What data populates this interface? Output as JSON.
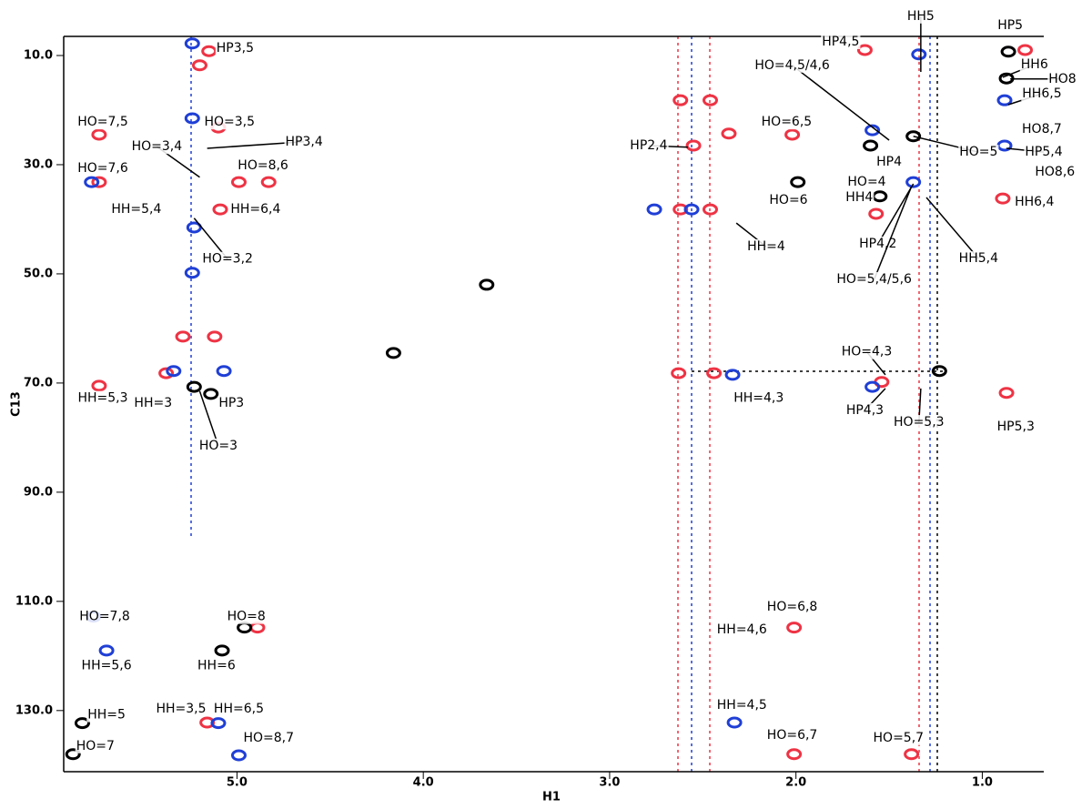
{
  "chart_data": {
    "type": "scatter",
    "xlabel": "H1",
    "ylabel": "C13",
    "xlim": [
      5.93,
      0.67
    ],
    "ylim": [
      6.5,
      141.2
    ],
    "xticks": [
      {
        "value": 5,
        "label": "5.0"
      },
      {
        "value": 4,
        "label": "4.0"
      },
      {
        "value": 3,
        "label": "3.0"
      },
      {
        "value": 2,
        "label": "2.0"
      },
      {
        "value": 1,
        "label": "1.0"
      }
    ],
    "yticks": [
      {
        "value": 10,
        "label": "10.0"
      },
      {
        "value": 30,
        "label": "30.0"
      },
      {
        "value": 50,
        "label": "50.0"
      },
      {
        "value": 70,
        "label": "70.0"
      },
      {
        "value": 90,
        "label": "90.0"
      },
      {
        "value": 110,
        "label": "110.0"
      },
      {
        "value": 130,
        "label": "130.0"
      }
    ],
    "series": [
      {
        "color": "#ee3344",
        "x": [
          5.15,
          5.2,
          5.1,
          4.99,
          4.83,
          5.09,
          5.74,
          5.74,
          5.29,
          5.12,
          5.38,
          5.74,
          4.89,
          5.16,
          2.01,
          2.01,
          1.38,
          2.62,
          2.46,
          2.55,
          2.62,
          2.46,
          2.63,
          2.44,
          2.36,
          0.87,
          1.63,
          0.89,
          1.57,
          1.54,
          0.77,
          2.02
        ],
        "values": [
          9.2,
          11.8,
          23.2,
          33.2,
          33.2,
          38.2,
          24.5,
          33.2,
          61.5,
          61.5,
          68.2,
          70.5,
          114.8,
          132.2,
          114.8,
          138,
          138,
          18.2,
          18.2,
          26.5,
          38.2,
          38.2,
          68.2,
          68.2,
          24.3,
          71.8,
          9,
          36.2,
          39,
          69.8,
          9,
          24.5
        ]
      },
      {
        "color": "#1f3fd6",
        "x": [
          5.24,
          5.24,
          5.24,
          5.23,
          5.34,
          5.07,
          5.78,
          5.77,
          5.7,
          4.99,
          5.1,
          2.34,
          2.56,
          2.76,
          1.37,
          0.88,
          0.88,
          1.59,
          2.33,
          1.59,
          1.34
        ],
        "values": [
          7.8,
          21.5,
          49.8,
          41.5,
          67.8,
          67.8,
          33.2,
          112.8,
          119,
          138.2,
          132.3,
          68.5,
          38.2,
          38.2,
          33.2,
          18.2,
          26.5,
          23.7,
          132.2,
          70.7,
          9.8
        ]
      },
      {
        "color": "#000000",
        "x": [
          3.66,
          4.16,
          5.23,
          5.14,
          4.96,
          5.08,
          5.83,
          5.88,
          1.6,
          1.55,
          1.99,
          0.86,
          0.87,
          1.37,
          1.23
        ],
        "values": [
          52,
          64.5,
          70.7,
          72,
          114.8,
          119,
          132.3,
          138,
          26.5,
          35.8,
          33.2,
          9.3,
          14.2,
          24.8,
          67.8
        ]
      }
    ],
    "annotations": [
      {
        "text": "HP3,5",
        "x": 5.01,
        "y": 8.7
      },
      {
        "text": "HO=3,5",
        "x": 5.04,
        "y": 22.2
      },
      {
        "text": "HO=3,4",
        "x": 5.43,
        "y": 26.7,
        "xy": [
          5.2,
          32.3
        ]
      },
      {
        "text": "HP3,4",
        "x": 4.64,
        "y": 25.8,
        "xy": [
          5.16,
          27.0
        ]
      },
      {
        "text": "HO=8,6",
        "x": 4.86,
        "y": 30.2
      },
      {
        "text": "HH=6,4",
        "x": 4.9,
        "y": 38.2
      },
      {
        "text": "HO=3,2",
        "x": 5.05,
        "y": 47.3,
        "xy": [
          5.23,
          39.8
        ]
      },
      {
        "text": "HO=7,5",
        "x": 5.72,
        "y": 22.2
      },
      {
        "text": "HO=7,6",
        "x": 5.72,
        "y": 30.7
      },
      {
        "text": "HH=5,4",
        "x": 5.54,
        "y": 38.2
      },
      {
        "text": "HH=5,3",
        "x": 5.72,
        "y": 72.8
      },
      {
        "text": "HH=3",
        "x": 5.45,
        "y": 73.7
      },
      {
        "text": "HP3",
        "x": 5.03,
        "y": 73.7
      },
      {
        "text": "HO=3",
        "x": 5.1,
        "y": 81.5,
        "xy": [
          5.2,
          71.5
        ]
      },
      {
        "text": "HO=7,8",
        "x": 5.71,
        "y": 112.8
      },
      {
        "text": "HH=5,6",
        "x": 5.7,
        "y": 121.8
      },
      {
        "text": "HO=8",
        "x": 4.95,
        "y": 112.8
      },
      {
        "text": "HH=6",
        "x": 5.11,
        "y": 121.8
      },
      {
        "text": "HH=5",
        "x": 5.7,
        "y": 130.8
      },
      {
        "text": "HH=3,5",
        "x": 5.3,
        "y": 129.7
      },
      {
        "text": "HH=6,5",
        "x": 4.99,
        "y": 129.7
      },
      {
        "text": "HO=7",
        "x": 5.76,
        "y": 136.5
      },
      {
        "text": "HO=8,7",
        "x": 4.83,
        "y": 135
      },
      {
        "text": "HP2,4",
        "x": 2.79,
        "y": 26.5,
        "xy": [
          2.58,
          26.8
        ]
      },
      {
        "text": "HO=6,5",
        "x": 2.05,
        "y": 22.2
      },
      {
        "text": "HO=6",
        "x": 2.04,
        "y": 36.5
      },
      {
        "text": "HH=4",
        "x": 2.16,
        "y": 45,
        "xy": [
          2.32,
          40.7
        ]
      },
      {
        "text": "HH=4,3",
        "x": 2.2,
        "y": 72.8
      },
      {
        "text": "HO=6,8",
        "x": 2.02,
        "y": 111
      },
      {
        "text": "HH=4,6",
        "x": 2.29,
        "y": 115.2
      },
      {
        "text": "HH=4,5",
        "x": 2.29,
        "y": 129
      },
      {
        "text": "HO=6,7",
        "x": 2.02,
        "y": 134.5
      },
      {
        "text": "HO=5,7",
        "x": 1.45,
        "y": 135
      },
      {
        "text": "HP4,5",
        "x": 1.76,
        "y": 7.5
      },
      {
        "text": "HH5",
        "x": 1.33,
        "y": 2.8,
        "xy": [
          1.33,
          13
        ]
      },
      {
        "text": "HP5",
        "x": 0.85,
        "y": 4.5
      },
      {
        "text": "HO=4,5/4,6",
        "x": 2.02,
        "y": 11.8,
        "xy": [
          1.5,
          25.5
        ]
      },
      {
        "text": "HH6",
        "x": 0.72,
        "y": 11.7,
        "xy": [
          0.89,
          14
        ]
      },
      {
        "text": "HO8",
        "x": 0.57,
        "y": 14.3,
        "xy": [
          0.85,
          14.3
        ]
      },
      {
        "text": "HH6,5",
        "x": 0.68,
        "y": 17,
        "xy": [
          0.86,
          19
        ]
      },
      {
        "text": "HO8,7",
        "x": 0.68,
        "y": 23.5
      },
      {
        "text": "HO=5",
        "x": 1.02,
        "y": 27.7,
        "xy": [
          1.37,
          24.8
        ]
      },
      {
        "text": "HP5,4",
        "x": 0.67,
        "y": 27.7,
        "xy": [
          0.87,
          27
        ]
      },
      {
        "text": "HP4",
        "x": 1.5,
        "y": 29.5
      },
      {
        "text": "HO8,6",
        "x": 0.61,
        "y": 31.3
      },
      {
        "text": "HO=4",
        "x": 1.62,
        "y": 33.2
      },
      {
        "text": "HH4",
        "x": 1.66,
        "y": 36.0
      },
      {
        "text": "HH6,4",
        "x": 0.72,
        "y": 36.8
      },
      {
        "text": "HP4,2",
        "x": 1.56,
        "y": 44.5,
        "xy": [
          1.37,
          33.5
        ]
      },
      {
        "text": "HH5,4",
        "x": 1.02,
        "y": 47.2,
        "xy": [
          1.3,
          36
        ]
      },
      {
        "text": "HO=5,4/5,6",
        "x": 1.58,
        "y": 51,
        "xy": [
          1.38,
          34
        ]
      },
      {
        "text": "HO=4,3",
        "x": 1.62,
        "y": 64.3,
        "xy": [
          1.52,
          68.5
        ]
      },
      {
        "text": "HP4,3",
        "x": 1.63,
        "y": 75,
        "xy": [
          1.52,
          71
        ]
      },
      {
        "text": "HO=5,3",
        "x": 1.34,
        "y": 77.2,
        "xy": [
          1.33,
          71
        ]
      },
      {
        "text": "HP5,3",
        "x": 0.82,
        "y": 78
      }
    ]
  }
}
